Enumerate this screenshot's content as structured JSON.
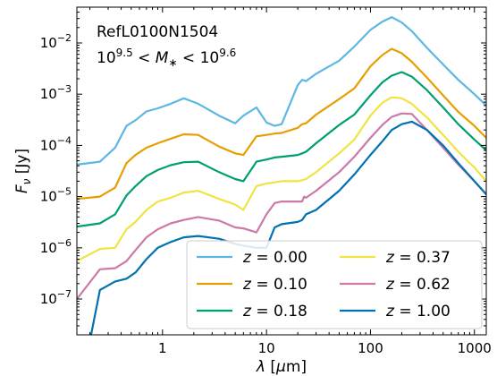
{
  "chart_data": {
    "type": "line",
    "xscale": "log",
    "yscale": "log",
    "xlim": [
      0.15,
      1300
    ],
    "ylim": [
      2e-08,
      0.05
    ],
    "xlabel_parts": [
      "λ",
      " [",
      "μ",
      "m]"
    ],
    "ylabel_parts": [
      "F",
      "ν",
      " [Jy]"
    ],
    "x_ticks": [
      {
        "value": 1,
        "label": "1"
      },
      {
        "value": 10,
        "label": "10"
      },
      {
        "value": 100,
        "label": "100"
      },
      {
        "value": 1000,
        "label": "1000"
      }
    ],
    "y_ticks": [
      {
        "exp": -7,
        "base": "10",
        "sup": "−7"
      },
      {
        "exp": -6,
        "base": "10",
        "sup": "−6"
      },
      {
        "exp": -5,
        "base": "10",
        "sup": "−5"
      },
      {
        "exp": -4,
        "base": "10",
        "sup": "−4"
      },
      {
        "exp": -3,
        "base": "10",
        "sup": "−3"
      },
      {
        "exp": -2,
        "base": "10",
        "sup": "−2"
      }
    ],
    "annotation": {
      "line1": "RefL0100N1504",
      "line2": {
        "base1": "10",
        "sup1": "9.5",
        "mid1": " < ",
        "sym": "M",
        "sub": "∗",
        "mid2": " < ",
        "base2": "10",
        "sup2": "9.6"
      }
    },
    "legend_location": "lower right",
    "series": [
      {
        "name": "z = 0.00",
        "label_var": "z",
        "label_val": " = 0.00",
        "color": "#5DB7E3",
        "x": [
          0.15,
          0.25,
          0.35,
          0.45,
          0.55,
          0.7,
          0.9,
          1.2,
          1.6,
          2.2,
          3.5,
          5.0,
          6.0,
          8.0,
          10,
          12,
          14,
          20,
          22,
          24,
          30,
          50,
          70,
          100,
          130,
          160,
          200,
          250,
          350,
          500,
          700,
          1000,
          1300
        ],
        "y": [
          4.2e-05,
          4.8e-05,
          9e-05,
          0.00024,
          0.00031,
          0.00046,
          0.00053,
          0.00065,
          0.00083,
          0.00065,
          0.00038,
          0.00027,
          0.00038,
          0.00055,
          0.00028,
          0.00024,
          0.00026,
          0.0015,
          0.0019,
          0.0018,
          0.0025,
          0.0045,
          0.0085,
          0.018,
          0.026,
          0.032,
          0.025,
          0.017,
          0.008,
          0.0038,
          0.0019,
          0.001,
          0.0006
        ]
      },
      {
        "name": "z = 0.10",
        "label_var": "z",
        "label_val": " = 0.10",
        "color": "#E69F00",
        "x": [
          0.15,
          0.25,
          0.35,
          0.45,
          0.55,
          0.7,
          0.9,
          1.2,
          1.6,
          2.2,
          3.5,
          5.0,
          6.0,
          8.0,
          10,
          12,
          14,
          20,
          22,
          24,
          30,
          50,
          70,
          100,
          130,
          160,
          200,
          250,
          350,
          500,
          700,
          1000,
          1300
        ],
        "y": [
          9e-06,
          1e-05,
          1.5e-05,
          4.5e-05,
          6.5e-05,
          9e-05,
          0.00011,
          0.000135,
          0.000165,
          0.00016,
          9.5e-05,
          7e-05,
          6.5e-05,
          0.00015,
          0.00016,
          0.00017,
          0.000175,
          0.00022,
          0.00026,
          0.00027,
          0.0004,
          0.0008,
          0.0013,
          0.0035,
          0.0058,
          0.0077,
          0.0063,
          0.0043,
          0.0021,
          0.00095,
          0.00045,
          0.00024,
          0.00014
        ]
      },
      {
        "name": "z = 0.18",
        "label_var": "z",
        "label_val": " = 0.18",
        "color": "#009E73",
        "x": [
          0.15,
          0.25,
          0.35,
          0.45,
          0.55,
          0.7,
          0.9,
          1.2,
          1.6,
          2.2,
          3.5,
          5.0,
          6.0,
          8.0,
          10,
          12,
          14,
          20,
          22,
          24,
          30,
          50,
          70,
          100,
          130,
          160,
          200,
          250,
          350,
          500,
          700,
          1000,
          1300
        ],
        "y": [
          2.6e-06,
          3e-06,
          4.5e-06,
          1.05e-05,
          1.6e-05,
          2.5e-05,
          3.3e-05,
          4.1e-05,
          4.7e-05,
          4.8e-05,
          3e-05,
          2.2e-05,
          2e-05,
          4.8e-05,
          5.3e-05,
          5.8e-05,
          6e-05,
          6.5e-05,
          7e-05,
          7.5e-05,
          0.00011,
          0.00025,
          0.0004,
          0.00095,
          0.0017,
          0.0023,
          0.0027,
          0.0022,
          0.0012,
          0.00055,
          0.00026,
          0.00013,
          8e-05
        ]
      },
      {
        "name": "z = 0.37",
        "label_var": "z",
        "label_val": " = 0.37",
        "color": "#F0E442",
        "x": [
          0.15,
          0.25,
          0.35,
          0.45,
          0.55,
          0.7,
          0.9,
          1.2,
          1.6,
          2.2,
          3.5,
          5.0,
          6.0,
          8.0,
          10,
          12,
          14,
          20,
          22,
          24,
          30,
          50,
          70,
          100,
          130,
          160,
          200,
          250,
          350,
          500,
          700,
          1000,
          1300
        ],
        "y": [
          5.5e-07,
          9.5e-07,
          1e-06,
          2.3e-06,
          3.2e-06,
          5.5e-06,
          8e-06,
          9.5e-06,
          1.2e-05,
          1.3e-05,
          9e-06,
          7e-06,
          5.5e-06,
          1.6e-05,
          1.8e-05,
          1.9e-05,
          2e-05,
          2e-05,
          2.1e-05,
          2.2e-05,
          3e-05,
          7e-05,
          0.00013,
          0.00038,
          0.00068,
          0.00087,
          0.00083,
          0.00065,
          0.00035,
          0.00016,
          7.5e-05,
          3.7e-05,
          2e-05
        ]
      },
      {
        "name": "z = 0.62",
        "label_var": "z",
        "label_val": " = 0.62",
        "color": "#CC79A7",
        "x": [
          0.15,
          0.25,
          0.35,
          0.45,
          0.55,
          0.7,
          0.9,
          1.2,
          1.6,
          2.2,
          3.5,
          5.0,
          6.0,
          8.0,
          10,
          12,
          14,
          20,
          22,
          23,
          24,
          30,
          50,
          70,
          100,
          130,
          160,
          200,
          250,
          350,
          500,
          700,
          1000,
          1300
        ],
        "y": [
          1e-07,
          3.8e-07,
          4e-07,
          5.5e-07,
          9e-07,
          1.6e-06,
          2.3e-06,
          3e-06,
          3.5e-06,
          4e-06,
          3.4e-06,
          2.5e-06,
          2.4e-06,
          2e-06,
          4.5e-06,
          7.5e-06,
          8e-06,
          8e-06,
          8e-06,
          1e-05,
          9.5e-06,
          1.3e-05,
          3e-05,
          6e-05,
          0.00014,
          0.00025,
          0.00036,
          0.00042,
          0.00041,
          0.0002,
          9e-05,
          4.2e-05,
          2e-05,
          1.1e-05
        ]
      },
      {
        "name": "z = 1.00",
        "label_var": "z",
        "label_val": " = 1.00",
        "color": "#0072B2",
        "x": [
          0.2,
          0.25,
          0.35,
          0.45,
          0.55,
          0.7,
          0.9,
          1.2,
          1.6,
          2.2,
          3.5,
          5.0,
          6.0,
          8.0,
          10,
          12,
          14,
          20,
          22,
          24,
          30,
          50,
          70,
          100,
          130,
          160,
          200,
          250,
          350,
          500,
          700,
          1000,
          1300
        ],
        "y": [
          1.5e-08,
          1.5e-07,
          2.2e-07,
          2.5e-07,
          3.3e-07,
          6e-07,
          1e-06,
          1.3e-06,
          1.6e-06,
          1.7e-06,
          1.5e-06,
          1.2e-06,
          1.1e-06,
          1e-06,
          1e-06,
          2.5e-06,
          2.9e-06,
          3.2e-06,
          3.5e-06,
          4.5e-06,
          5.5e-06,
          1.3e-05,
          2.7e-05,
          6.5e-05,
          0.00012,
          0.0002,
          0.00026,
          0.00029,
          0.0002,
          0.0001,
          4.5e-05,
          2e-05,
          1.1e-05
        ]
      }
    ]
  }
}
